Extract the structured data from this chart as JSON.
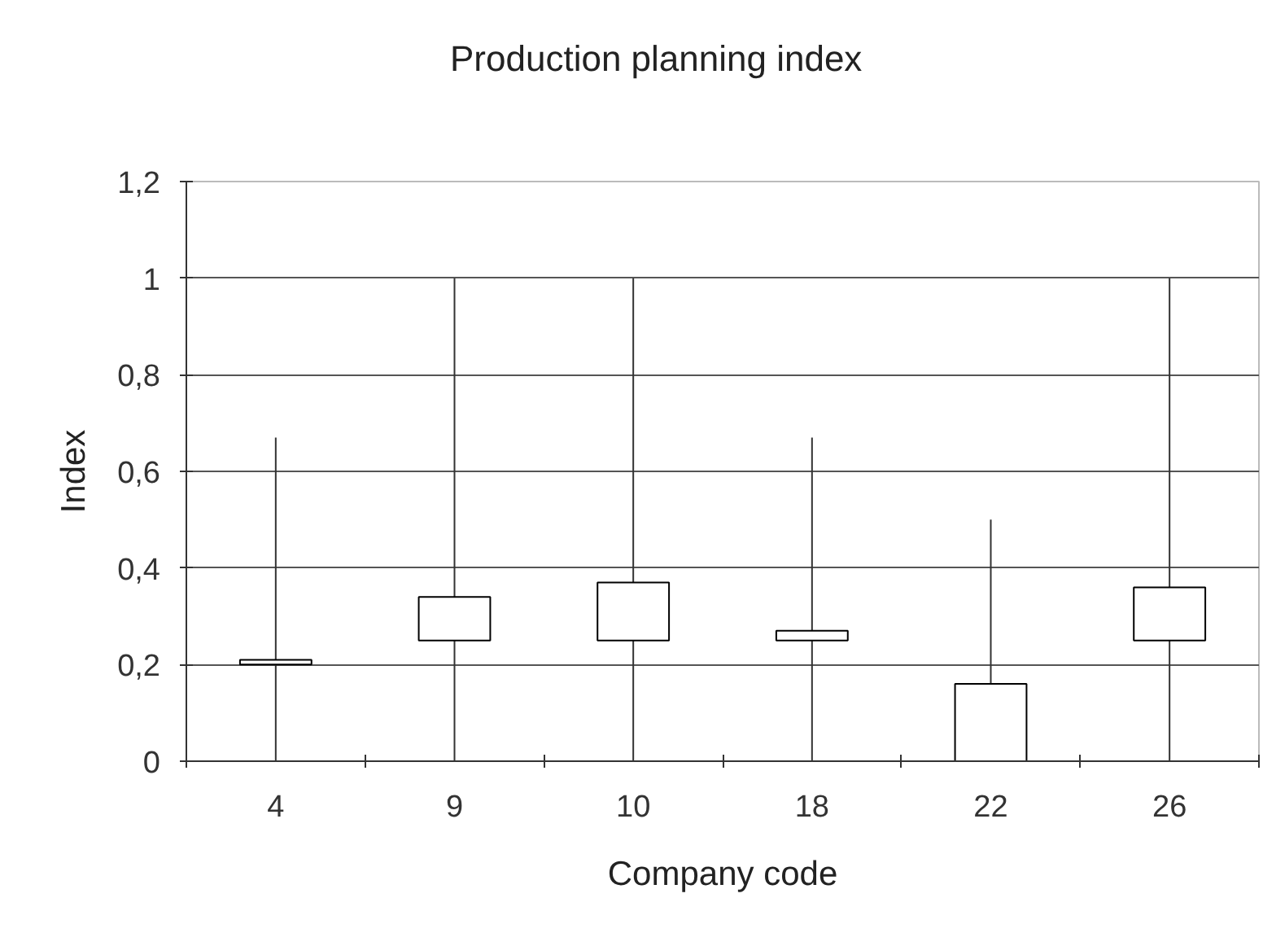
{
  "chart_data": {
    "type": "candlestick",
    "title": "Production planning index",
    "xlabel": "Company code",
    "ylabel": "Index",
    "categories": [
      "4",
      "9",
      "10",
      "18",
      "22",
      "26"
    ],
    "ohlc": [
      [
        0.2,
        0.67,
        0,
        0.21
      ],
      [
        0.25,
        1,
        0,
        0.34
      ],
      [
        0.25,
        1,
        0,
        0.37
      ],
      [
        0.25,
        0.67,
        0,
        0.27
      ],
      [
        0,
        0.5,
        0,
        0.16
      ],
      [
        0.25,
        1,
        0,
        0.36
      ]
    ],
    "ylim": [
      0,
      1.2
    ],
    "yticks": [
      0,
      {
        "value": 0.2,
        "label": "0,2"
      },
      {
        "value": 0.4,
        "label": "0,4"
      },
      {
        "value": 0.6,
        "label": "0,6"
      },
      {
        "value": 0.8,
        "label": "0,8"
      },
      1,
      {
        "value": 1.2,
        "label": "1,2"
      }
    ],
    "grid": "y"
  }
}
